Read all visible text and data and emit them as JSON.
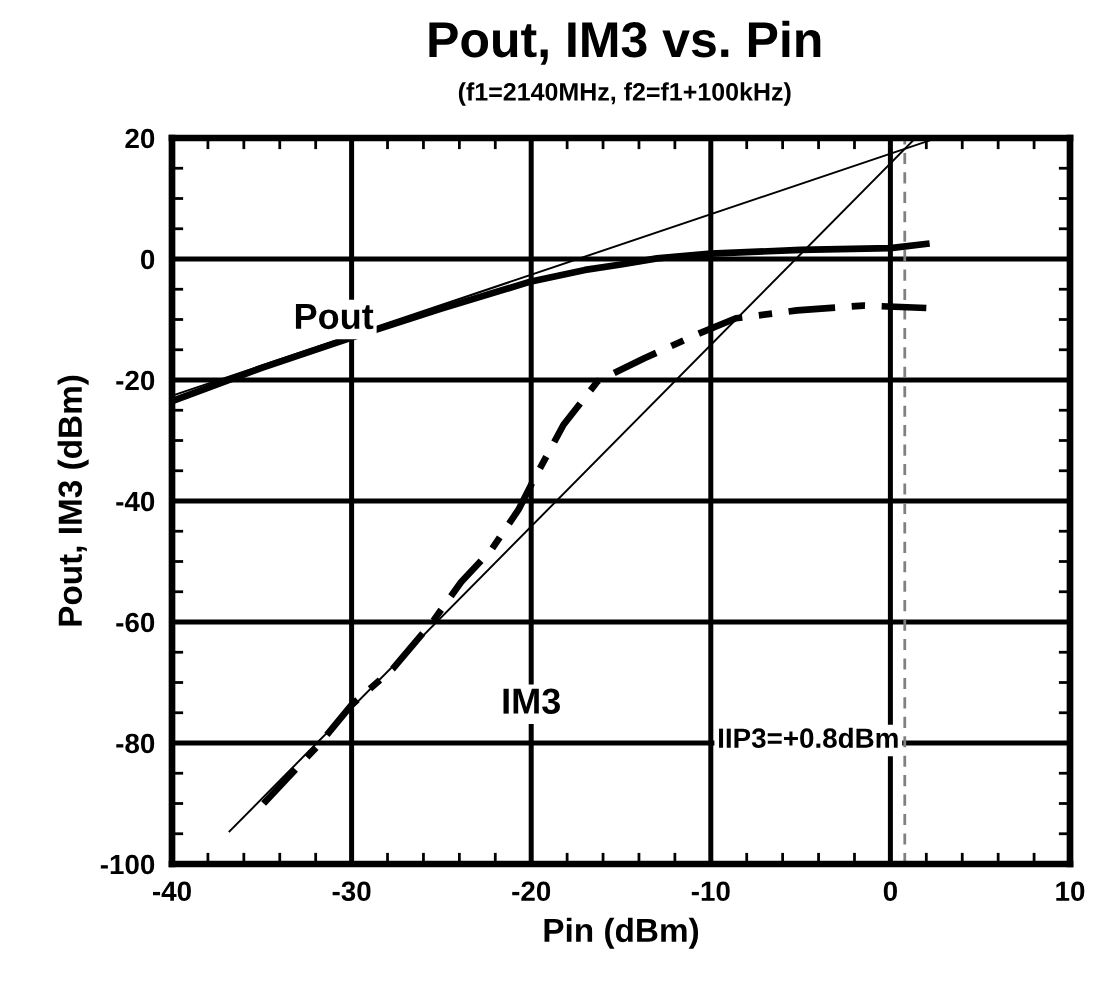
{
  "chart_data": {
    "type": "line",
    "title": "Pout, IM3 vs. Pin",
    "subtitle": "(f1=2140MHz, f2=f1+100kHz)",
    "xlabel": "Pin (dBm)",
    "ylabel": "Pout, IM3 (dBm)",
    "series": [
      {
        "name": "Pout",
        "color": "#000000",
        "line_style": "solid",
        "x": [
          -40,
          -35,
          -30,
          -25,
          -20,
          -17,
          -15,
          -13,
          -10,
          -5,
          0,
          2
        ],
        "values": [
          -23.5,
          -18,
          -13,
          -8.2,
          -3.7,
          -1.8,
          -0.9,
          0.1,
          0.9,
          1.5,
          1.8,
          2.5
        ]
      },
      {
        "name": "IM3",
        "color": "#000000",
        "line_style": "dashed",
        "x": [
          -34.9,
          -31.8,
          -30,
          -27.7,
          -25.5,
          -23.9,
          -22.2,
          -20.7,
          -20,
          -18.2,
          -16.3,
          -13.7,
          -10.8,
          -8.6,
          -5.2,
          -1.5,
          2
        ],
        "values": [
          -90,
          -80.2,
          -73.7,
          -67.7,
          -60,
          -53.4,
          -48,
          -41.4,
          -37.3,
          -27.4,
          -20.2,
          -16.4,
          -12.5,
          -9.8,
          -8.5,
          -7.7,
          -8.1
        ]
      },
      {
        "color": "#000000",
        "line_style": "solid",
        "x": [
          -40,
          2.6
        ],
        "values": [
          -22.6,
          20
        ]
      },
      {
        "color": "#000000",
        "line_style": "solid",
        "x": [
          -36.8,
          1.4
        ],
        "values": [
          -94.6,
          20
        ]
      }
    ],
    "ref_lines": [
      {
        "axis": "x",
        "value": 0.8,
        "label": "IIP3=+0.8dBm",
        "color": "#808080",
        "line_style": "dashed"
      }
    ],
    "xlim": [
      -40,
      10
    ],
    "ylim": [
      -100,
      20
    ],
    "xticks": [
      -40,
      -30,
      -20,
      -10,
      0,
      10
    ],
    "yticks": [
      -100,
      -80,
      -60,
      -40,
      -20,
      0,
      20
    ],
    "grid": true,
    "legend": false,
    "marker": "none"
  }
}
